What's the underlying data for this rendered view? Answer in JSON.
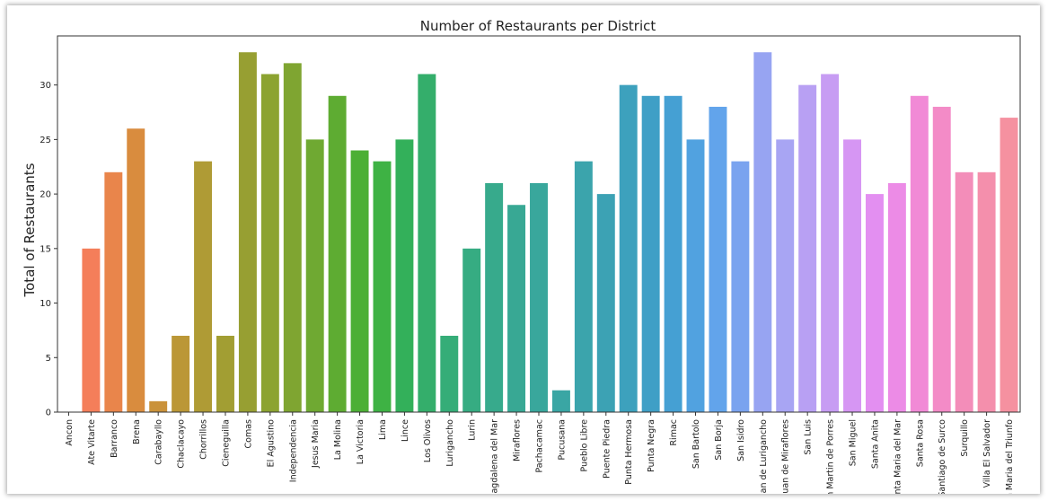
{
  "chart_data": {
    "type": "bar",
    "title": "Number of Restaurants per District",
    "xlabel": "",
    "ylabel": "Total of Restaurants",
    "ylim": [
      0,
      34.5
    ],
    "yticks": [
      0,
      5,
      10,
      15,
      20,
      25,
      30
    ],
    "grid": false,
    "categories": [
      "Ancon",
      "Ate Vitarte",
      "Barranco",
      "Brena",
      "Carabayllo",
      "Chaclacayo",
      "Chorrillos",
      "Cieneguilla",
      "Comas",
      "El Agustino",
      "Independencia",
      "Jesus Maria",
      "La Molina",
      "La Victoria",
      "Lima",
      "Lince",
      "Los Olivos",
      "Lurigancho",
      "Lurin",
      "Magdalena del Mar",
      "Miraflores",
      "Pachacamac",
      "Pucusana",
      "Pueblo Libre",
      "Puente Piedra",
      "Punta Hermosa",
      "Punta Negra",
      "Rimac",
      "San Bartolo",
      "San Borja",
      "San Isidro",
      "San Juan de Lurigancho",
      "San Juan de Miraflores",
      "San Luis",
      "San Martin de Porres",
      "San Miguel",
      "Santa Anita",
      "Santa Maria del Mar",
      "Santa Rosa",
      "Santiago de Surco",
      "Surquillo",
      "Villa El Salvador",
      "Villa Maria del Triunfo"
    ],
    "values": [
      0,
      15,
      22,
      26,
      1,
      7,
      23,
      7,
      33,
      31,
      32,
      25,
      29,
      24,
      23,
      25,
      31,
      7,
      15,
      21,
      19,
      21,
      2,
      23,
      20,
      30,
      29,
      29,
      25,
      28,
      23,
      33,
      25,
      30,
      31,
      25,
      20,
      21,
      29,
      28,
      22,
      22,
      27
    ],
    "colors": [
      "#f77189",
      "#f47e5a",
      "#e9854b",
      "#d98c3e",
      "#ca923a",
      "#bb9737",
      "#af9b35",
      "#a29e33",
      "#979f32",
      "#8ca331",
      "#7fa531",
      "#6fa932",
      "#5eac32",
      "#4caf35",
      "#3eb244",
      "#33b05a",
      "#34ae6b",
      "#35ad78",
      "#36ac82",
      "#37aa8c",
      "#38a894",
      "#39a79c",
      "#3aa6a4",
      "#3ba4ac",
      "#3ca2b4",
      "#3da1bd",
      "#3f9fc6",
      "#45a0d3",
      "#51a2e0",
      "#62a4eb",
      "#7aa3ef",
      "#97a4f2",
      "#a8a5f3",
      "#b8a0f3",
      "#c79cf3",
      "#d696f3",
      "#e38ff1",
      "#ec8be6",
      "#f18ad6",
      "#f38bc7",
      "#f38db9",
      "#f48fac",
      "#f591a0"
    ]
  }
}
